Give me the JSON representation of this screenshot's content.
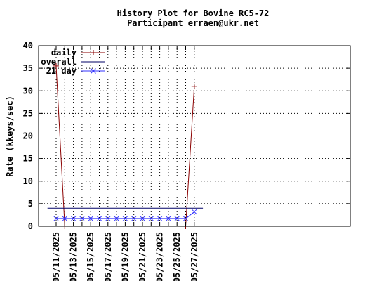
{
  "chart_data": {
    "type": "line",
    "title": "History Plot for Bovine RC5-72",
    "subtitle": "Participant erraen@ukr.net",
    "ylabel": "Rate (kkeys/sec)",
    "xlabel": "",
    "ylim": [
      0,
      40
    ],
    "yticks": [
      0,
      5,
      10,
      15,
      20,
      25,
      30,
      35,
      40
    ],
    "x_tick_labels": [
      "05/11/2025",
      "05/13/2025",
      "05/15/2025",
      "05/17/2025",
      "05/19/2025",
      "05/21/2025",
      "05/23/2025",
      "05/25/2025",
      "05/27/2025"
    ],
    "x_dates": [
      "05/11/2025",
      "05/12/2025",
      "05/13/2025",
      "05/14/2025",
      "05/15/2025",
      "05/16/2025",
      "05/17/2025",
      "05/18/2025",
      "05/19/2025",
      "05/20/2025",
      "05/21/2025",
      "05/22/2025",
      "05/23/2025",
      "05/24/2025",
      "05/25/2025",
      "05/26/2025",
      "05/27/2025"
    ],
    "grid": true,
    "legend_position": "top-left",
    "series": [
      {
        "name": "daily",
        "color": "#8b0000",
        "marker": "plus",
        "x": [
          "05/11/2025",
          "05/12/2025",
          "05/26/2025",
          "05/27/2025"
        ],
        "values": [
          35.5,
          0,
          0,
          31
        ]
      },
      {
        "name": "overall",
        "color": "#000066",
        "marker": "none",
        "x": [
          "05/10/2025",
          "05/28/2025"
        ],
        "values": [
          4,
          4
        ]
      },
      {
        "name": "21 day",
        "color": "#3333ff",
        "marker": "x",
        "x": [
          "05/11/2025",
          "05/12/2025",
          "05/13/2025",
          "05/14/2025",
          "05/15/2025",
          "05/16/2025",
          "05/17/2025",
          "05/18/2025",
          "05/19/2025",
          "05/20/2025",
          "05/21/2025",
          "05/22/2025",
          "05/23/2025",
          "05/24/2025",
          "05/25/2025",
          "05/26/2025",
          "05/27/2025"
        ],
        "values": [
          1.7,
          1.7,
          1.7,
          1.7,
          1.7,
          1.7,
          1.7,
          1.7,
          1.7,
          1.7,
          1.7,
          1.7,
          1.7,
          1.7,
          1.7,
          1.7,
          3.2
        ]
      }
    ]
  }
}
